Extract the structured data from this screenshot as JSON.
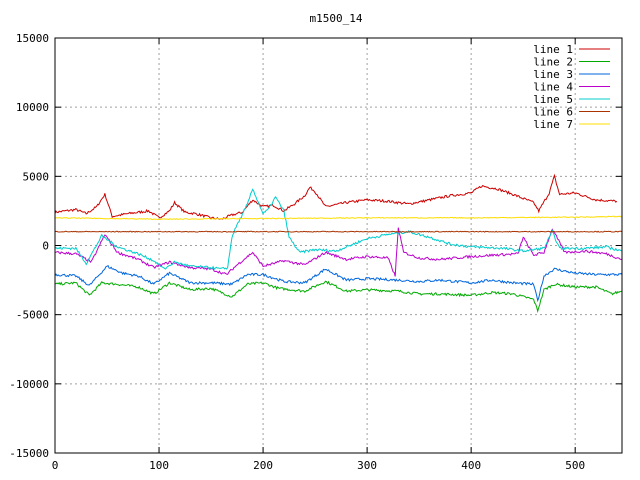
{
  "chart_data": {
    "type": "line",
    "title": "m1500_14",
    "xlabel": "",
    "ylabel": "",
    "xlim": [
      0,
      545
    ],
    "ylim": [
      -15000,
      15000
    ],
    "xticks": [
      0,
      100,
      200,
      300,
      400,
      500
    ],
    "yticks": [
      -15000,
      -10000,
      -5000,
      0,
      5000,
      10000,
      15000
    ],
    "grid": true,
    "legend_position": "top-right",
    "series": [
      {
        "name": "line 1",
        "color": "#cc0000",
        "points": [
          [
            0,
            2400
          ],
          [
            10,
            2500
          ],
          [
            20,
            2600
          ],
          [
            30,
            2300
          ],
          [
            40,
            2800
          ],
          [
            48,
            3700
          ],
          [
            55,
            2100
          ],
          [
            70,
            2300
          ],
          [
            90,
            2500
          ],
          [
            100,
            2000
          ],
          [
            110,
            2500
          ],
          [
            115,
            3100
          ],
          [
            125,
            2400
          ],
          [
            135,
            2300
          ],
          [
            150,
            2000
          ],
          [
            160,
            1900
          ],
          [
            170,
            2200
          ],
          [
            180,
            2400
          ],
          [
            190,
            3300
          ],
          [
            200,
            2800
          ],
          [
            210,
            2900
          ],
          [
            220,
            2500
          ],
          [
            230,
            3000
          ],
          [
            240,
            3600
          ],
          [
            245,
            4200
          ],
          [
            250,
            3900
          ],
          [
            260,
            2800
          ],
          [
            280,
            3100
          ],
          [
            300,
            3300
          ],
          [
            320,
            3200
          ],
          [
            340,
            3000
          ],
          [
            360,
            3300
          ],
          [
            380,
            3600
          ],
          [
            400,
            3800
          ],
          [
            410,
            4300
          ],
          [
            425,
            4100
          ],
          [
            440,
            3700
          ],
          [
            460,
            3100
          ],
          [
            465,
            2500
          ],
          [
            475,
            3800
          ],
          [
            480,
            5000
          ],
          [
            485,
            3700
          ],
          [
            500,
            3800
          ],
          [
            520,
            3300
          ],
          [
            540,
            3200
          ]
        ]
      },
      {
        "name": "line 2",
        "color": "#00aa00",
        "points": [
          [
            0,
            -2800
          ],
          [
            20,
            -2700
          ],
          [
            33,
            -3600
          ],
          [
            45,
            -2700
          ],
          [
            60,
            -2800
          ],
          [
            80,
            -3000
          ],
          [
            95,
            -3500
          ],
          [
            110,
            -2700
          ],
          [
            130,
            -3200
          ],
          [
            150,
            -3100
          ],
          [
            170,
            -3700
          ],
          [
            185,
            -2800
          ],
          [
            200,
            -2700
          ],
          [
            215,
            -3100
          ],
          [
            240,
            -3300
          ],
          [
            260,
            -2600
          ],
          [
            280,
            -3300
          ],
          [
            300,
            -3200
          ],
          [
            330,
            -3300
          ],
          [
            350,
            -3500
          ],
          [
            370,
            -3500
          ],
          [
            400,
            -3600
          ],
          [
            420,
            -3400
          ],
          [
            440,
            -3500
          ],
          [
            460,
            -3900
          ],
          [
            464,
            -4700
          ],
          [
            470,
            -3200
          ],
          [
            480,
            -2800
          ],
          [
            500,
            -3000
          ],
          [
            520,
            -3000
          ],
          [
            535,
            -3500
          ],
          [
            545,
            -3300
          ]
        ]
      },
      {
        "name": "line 3",
        "color": "#0066dd",
        "points": [
          [
            0,
            -2100
          ],
          [
            20,
            -2200
          ],
          [
            33,
            -2900
          ],
          [
            50,
            -1500
          ],
          [
            65,
            -2000
          ],
          [
            80,
            -2200
          ],
          [
            95,
            -2800
          ],
          [
            110,
            -2000
          ],
          [
            130,
            -2700
          ],
          [
            150,
            -2700
          ],
          [
            170,
            -2800
          ],
          [
            185,
            -2100
          ],
          [
            200,
            -2100
          ],
          [
            220,
            -2600
          ],
          [
            240,
            -2700
          ],
          [
            260,
            -1700
          ],
          [
            280,
            -2500
          ],
          [
            300,
            -2400
          ],
          [
            330,
            -2500
          ],
          [
            350,
            -2600
          ],
          [
            370,
            -2500
          ],
          [
            400,
            -2700
          ],
          [
            420,
            -2500
          ],
          [
            440,
            -2700
          ],
          [
            460,
            -2800
          ],
          [
            464,
            -4000
          ],
          [
            470,
            -2200
          ],
          [
            480,
            -1700
          ],
          [
            500,
            -2000
          ],
          [
            520,
            -2100
          ],
          [
            545,
            -2100
          ]
        ]
      },
      {
        "name": "line 4",
        "color": "#bb00cc",
        "points": [
          [
            0,
            -500
          ],
          [
            20,
            -600
          ],
          [
            35,
            -1200
          ],
          [
            48,
            800
          ],
          [
            60,
            -500
          ],
          [
            80,
            -1000
          ],
          [
            95,
            -1600
          ],
          [
            110,
            -1200
          ],
          [
            130,
            -1600
          ],
          [
            150,
            -1700
          ],
          [
            165,
            -2100
          ],
          [
            175,
            -1400
          ],
          [
            190,
            -500
          ],
          [
            200,
            -1500
          ],
          [
            220,
            -1100
          ],
          [
            240,
            -1400
          ],
          [
            260,
            -500
          ],
          [
            280,
            -1000
          ],
          [
            300,
            -800
          ],
          [
            320,
            -900
          ],
          [
            327,
            -2200
          ],
          [
            330,
            1300
          ],
          [
            335,
            -500
          ],
          [
            350,
            -900
          ],
          [
            370,
            -1000
          ],
          [
            400,
            -800
          ],
          [
            420,
            -700
          ],
          [
            445,
            -600
          ],
          [
            450,
            600
          ],
          [
            460,
            -700
          ],
          [
            470,
            -500
          ],
          [
            478,
            1200
          ],
          [
            490,
            -500
          ],
          [
            510,
            -400
          ],
          [
            530,
            -600
          ],
          [
            545,
            -1000
          ]
        ]
      },
      {
        "name": "line 5",
        "color": "#00cccc",
        "points": [
          [
            0,
            -200
          ],
          [
            20,
            -200
          ],
          [
            30,
            -1300
          ],
          [
            45,
            700
          ],
          [
            60,
            -100
          ],
          [
            80,
            -600
          ],
          [
            95,
            -1100
          ],
          [
            105,
            -1700
          ],
          [
            115,
            -1200
          ],
          [
            130,
            -1500
          ],
          [
            150,
            -1600
          ],
          [
            160,
            -1700
          ],
          [
            166,
            -1600
          ],
          [
            170,
            600
          ],
          [
            175,
            1500
          ],
          [
            180,
            2200
          ],
          [
            185,
            3000
          ],
          [
            190,
            4100
          ],
          [
            200,
            2300
          ],
          [
            205,
            2600
          ],
          [
            212,
            3500
          ],
          [
            220,
            2500
          ],
          [
            225,
            600
          ],
          [
            235,
            -500
          ],
          [
            250,
            -300
          ],
          [
            270,
            -400
          ],
          [
            300,
            500
          ],
          [
            320,
            800
          ],
          [
            340,
            1000
          ],
          [
            360,
            600
          ],
          [
            380,
            100
          ],
          [
            400,
            -100
          ],
          [
            430,
            -200
          ],
          [
            450,
            -400
          ],
          [
            470,
            -200
          ],
          [
            478,
            1000
          ],
          [
            485,
            -200
          ],
          [
            510,
            -200
          ],
          [
            530,
            -100
          ],
          [
            545,
            -400
          ]
        ]
      },
      {
        "name": "line 6",
        "color": "#aa3300",
        "points": [
          [
            0,
            1000
          ],
          [
            100,
            1000
          ],
          [
            200,
            1000
          ],
          [
            300,
            1000
          ],
          [
            400,
            1000
          ],
          [
            500,
            1000
          ],
          [
            545,
            1000
          ]
        ]
      },
      {
        "name": "line 7",
        "color": "#ffdd00",
        "points": [
          [
            0,
            2000
          ],
          [
            100,
            1900
          ],
          [
            200,
            1950
          ],
          [
            300,
            2000
          ],
          [
            400,
            2000
          ],
          [
            500,
            2050
          ],
          [
            545,
            2100
          ]
        ]
      }
    ]
  }
}
